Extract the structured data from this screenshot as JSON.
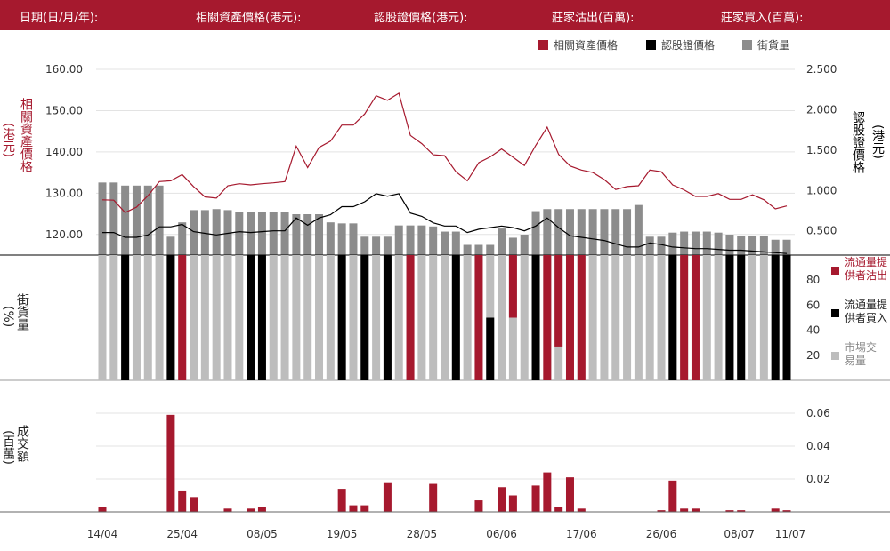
{
  "header": {
    "date_label": "日期(日/月/年):",
    "underlying_label": "相關資產價格(港元):",
    "warrant_label": "認股證價格(港元):",
    "outflow_label": "莊家沽出(百萬):",
    "inflow_label": "莊家買入(百萬):"
  },
  "legend": {
    "underlying": "相關資產價格",
    "warrant": "認股證價格",
    "outstanding": "街貨量"
  },
  "axis_labels": {
    "left_top": "相關資產價格",
    "left_top_unit": "(港元)",
    "right_top": "認股證價格",
    "right_top_unit": "(港元)",
    "left_mid": "街貨量",
    "left_mid_unit": "(%)",
    "left_bottom": "成交額",
    "left_bottom_unit": "(百萬)"
  },
  "mid_legend": {
    "sell": "流通量提供者沽出",
    "buy": "流通量提供者買入",
    "market": "市場交易量"
  },
  "colors": {
    "header_bg": "#a6192e",
    "underlying": "#a6192e",
    "warrant": "#000000",
    "outstanding": "#8c8c8c",
    "market": "#bdbdbd",
    "sell": "#a6192e",
    "buy": "#000000"
  },
  "chart_data": {
    "type": "line",
    "x_ticks": [
      "14/04",
      "25/04",
      "08/05",
      "19/05",
      "28/05",
      "06/06",
      "17/06",
      "26/06",
      "08/07",
      "11/07"
    ],
    "y_left_ticks": [
      "120.00",
      "130.00",
      "140.00",
      "150.00",
      "160.00"
    ],
    "y_left_range": [
      115,
      160
    ],
    "y_right_ticks": [
      "0.500",
      "1.000",
      "1.500",
      "2.000",
      "2.500"
    ],
    "y_right_range": [
      0.2,
      2.5
    ],
    "underlying_price": [
      128.4,
      128.3,
      125.3,
      126.6,
      129.4,
      132.8,
      133.0,
      134.5,
      131.6,
      129.1,
      128.8,
      131.8,
      132.3,
      132.0,
      132.3,
      132.5,
      132.8,
      141.4,
      136.2,
      141.1,
      142.6,
      146.5,
      146.5,
      149.2,
      153.6,
      152.5,
      154.2,
      144.0,
      142.0,
      139.3,
      139.1,
      135.2,
      133.0,
      137.4,
      138.8,
      140.7,
      138.7,
      136.7,
      141.6,
      146.0,
      139.4,
      136.6,
      135.6,
      135.0,
      133.3,
      130.9,
      131.6,
      131.8,
      135.6,
      135.2,
      132.0,
      130.8,
      129.2,
      129.2,
      129.9,
      128.5,
      128.5,
      129.6,
      128.4,
      126.2,
      126.9
    ],
    "warrant_price": [
      0.48,
      0.48,
      0.42,
      0.42,
      0.45,
      0.55,
      0.55,
      0.58,
      0.49,
      0.47,
      0.45,
      0.47,
      0.49,
      0.48,
      0.49,
      0.5,
      0.5,
      0.66,
      0.57,
      0.66,
      0.7,
      0.8,
      0.8,
      0.86,
      0.96,
      0.93,
      0.96,
      0.72,
      0.68,
      0.6,
      0.56,
      0.56,
      0.48,
      0.52,
      0.54,
      0.56,
      0.54,
      0.5,
      0.56,
      0.66,
      0.54,
      0.44,
      0.42,
      0.4,
      0.38,
      0.34,
      0.3,
      0.3,
      0.35,
      0.33,
      0.3,
      0.29,
      0.28,
      0.28,
      0.27,
      0.26,
      0.26,
      0.25,
      0.24,
      0.23,
      0.22
    ],
    "outstanding_pct": [
      71,
      71,
      68,
      68,
      68,
      68,
      18,
      32,
      44,
      44,
      45,
      44,
      42,
      42,
      42,
      42,
      42,
      40,
      40,
      40,
      32,
      31,
      31,
      18,
      18,
      18,
      29,
      29,
      29,
      28,
      23,
      23,
      10,
      10,
      10,
      26,
      17,
      20,
      43,
      45,
      45,
      45,
      45,
      45,
      45,
      45,
      45,
      49,
      18,
      18,
      22,
      23,
      23,
      23,
      22,
      20,
      19,
      19,
      19,
      15,
      15
    ],
    "market_volume": [
      0.003,
      0,
      0,
      0,
      0,
      0,
      0.059,
      0.013,
      0.009,
      0,
      0,
      0.002,
      0,
      0.002,
      0.003,
      0,
      0,
      0,
      0,
      0,
      0,
      0.014,
      0.004,
      0.004,
      0,
      0.018,
      0,
      0,
      0,
      0.017,
      0,
      0,
      0,
      0.007,
      0,
      0.015,
      0.01,
      0,
      0.016,
      0.024,
      0.003,
      0.021,
      0.002,
      0,
      0,
      0,
      0,
      0,
      0,
      0.001,
      0.019,
      0.002,
      0.002,
      0,
      0,
      0.001,
      0.001,
      0,
      0,
      0.002,
      0.001
    ],
    "lp_sell_pct": [
      0,
      0,
      0,
      0,
      0,
      0,
      0,
      100,
      0,
      0,
      0,
      0,
      0,
      0,
      0,
      0,
      0,
      0,
      0,
      0,
      0,
      0,
      0,
      0,
      0,
      0,
      0,
      100,
      0,
      0,
      0,
      0,
      0,
      100,
      0,
      0,
      50,
      0,
      0,
      100,
      73,
      100,
      100,
      0,
      0,
      0,
      0,
      0,
      0,
      0,
      0,
      100,
      100,
      0,
      0,
      0,
      0,
      0,
      0,
      0,
      0
    ],
    "lp_buy_pct": [
      0,
      0,
      100,
      0,
      0,
      0,
      100,
      0,
      0,
      0,
      0,
      0,
      0,
      100,
      100,
      0,
      0,
      0,
      0,
      0,
      0,
      100,
      0,
      100,
      0,
      100,
      0,
      0,
      0,
      0,
      0,
      100,
      0,
      0,
      50,
      0,
      0,
      0,
      100,
      0,
      0,
      0,
      0,
      0,
      0,
      0,
      0,
      0,
      0,
      0,
      100,
      0,
      0,
      0,
      0,
      100,
      100,
      0,
      0,
      100,
      100
    ],
    "mid_y_ticks": [
      "20",
      "40",
      "60",
      "80"
    ],
    "mid_y_range": [
      0,
      100
    ],
    "bottom_y_ticks": [
      "0.02",
      "0.04",
      "0.06"
    ],
    "bottom_y_range": [
      0,
      0.06
    ]
  }
}
